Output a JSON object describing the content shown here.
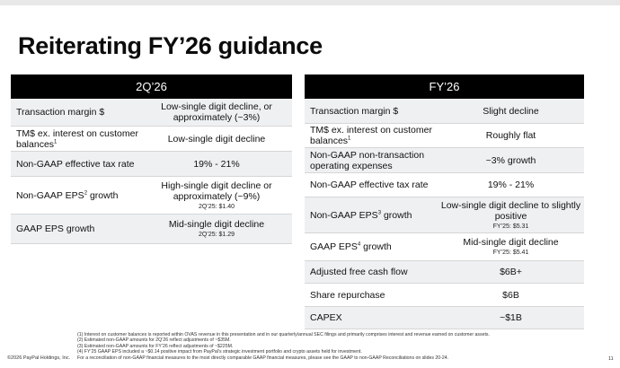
{
  "title": "Reiterating FY’26 guidance",
  "q2": {
    "header": "2Q’26",
    "rows": [
      {
        "metric": "Transaction margin $",
        "sup": "",
        "metric_suffix": "",
        "value": "Low-single digit decline, or approximately (~3%)",
        "sub": ""
      },
      {
        "metric": "TM$ ex. interest on customer balances",
        "sup": "1",
        "metric_suffix": "",
        "value": "Low-single digit decline",
        "sub": ""
      },
      {
        "metric": "Non-GAAP effective tax rate",
        "sup": "",
        "metric_suffix": "",
        "value": "19% - 21%",
        "sub": ""
      },
      {
        "metric": "Non-GAAP EPS",
        "sup": "2",
        "metric_suffix": " growth",
        "value": "High-single digit decline or approximately (~9%)",
        "sub": "2Q’25: $1.40"
      },
      {
        "metric": "GAAP EPS growth",
        "sup": "",
        "metric_suffix": "",
        "value": "Mid-single digit decline",
        "sub": "2Q’25: $1.29"
      }
    ]
  },
  "fy": {
    "header": "FY’26",
    "rows": [
      {
        "metric": "Transaction margin $",
        "sup": "",
        "metric_suffix": "",
        "value": "Slight decline",
        "sub": ""
      },
      {
        "metric": "TM$ ex. interest on customer balances",
        "sup": "1",
        "metric_suffix": "",
        "value": "Roughly flat",
        "sub": ""
      },
      {
        "metric": "Non-GAAP non-transaction operating expenses",
        "sup": "",
        "metric_suffix": "",
        "value": "~3% growth",
        "sub": ""
      },
      {
        "metric": "Non-GAAP effective tax rate",
        "sup": "",
        "metric_suffix": "",
        "value": "19% - 21%",
        "sub": ""
      },
      {
        "metric": "Non-GAAP EPS",
        "sup": "3",
        "metric_suffix": " growth",
        "value": "Low-single digit decline to slightly positive",
        "sub": "FY’25: $5.31"
      },
      {
        "metric": "GAAP EPS",
        "sup": "4",
        "metric_suffix": " growth",
        "value": "Mid-single digit decline",
        "sub": "FY’25: $5.41"
      },
      {
        "metric": "Adjusted free cash flow",
        "sup": "",
        "metric_suffix": "",
        "value": "$6B+",
        "sub": ""
      },
      {
        "metric": "Share repurchase",
        "sup": "",
        "metric_suffix": "",
        "value": "$6B",
        "sub": ""
      },
      {
        "metric": "CAPEX",
        "sup": "",
        "metric_suffix": "",
        "value": "~$1B",
        "sub": ""
      }
    ]
  },
  "footnotes": [
    "(1) Interest on customer balances is reported within OVAS revenue in this presentation and in our quarterly/annual SEC filings and primarily comprises interest and revenue earned on customer assets.",
    "(2) Estimated non-GAAP amounts for 2Q’26 reflect adjustments of ~$35M.",
    "(3) Estimated non-GAAP amounts for FY’26 reflect adjustments of ~$225M.",
    "(4) FY’25 GAAP EPS included a ~$0.14 positive impact from PayPal’s strategic investment portfolio and crypto assets held for investment.",
    "For a reconciliation of non-GAAP financial measures to the most directly comparable GAAP financial measures, please see the GAAP to non-GAAP Reconciliations on slides 20-24."
  ],
  "copyright": "©2026 PayPal Holdings, Inc.",
  "page_number": "11"
}
